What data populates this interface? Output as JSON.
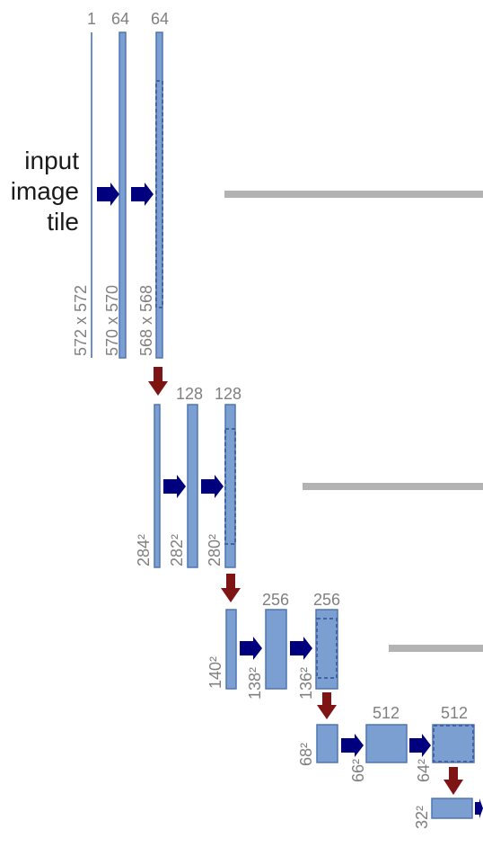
{
  "input_label": [
    "input",
    "image",
    "tile"
  ],
  "levels": [
    {
      "channels": [
        "1",
        "64",
        "64"
      ],
      "sizes": [
        "572 x 572",
        "570 x 570",
        "568 x 568"
      ]
    },
    {
      "channels": [
        "128",
        "128"
      ],
      "sizes": [
        "284²",
        "282²",
        "280²"
      ]
    },
    {
      "channels": [
        "256",
        "256"
      ],
      "sizes": [
        "140²",
        "138²",
        "136²"
      ]
    },
    {
      "channels": [
        "512",
        "512"
      ],
      "sizes": [
        "68²",
        "66²",
        "64²"
      ]
    },
    {
      "channels": [],
      "sizes": [
        "32²"
      ]
    }
  ],
  "colors": {
    "feature_map": "#7b9fd1",
    "conv_arrow": "#00007f",
    "pool_arrow": "#7f1414",
    "skip_connection": "#b3b3b3",
    "label_gray": "#808080"
  }
}
